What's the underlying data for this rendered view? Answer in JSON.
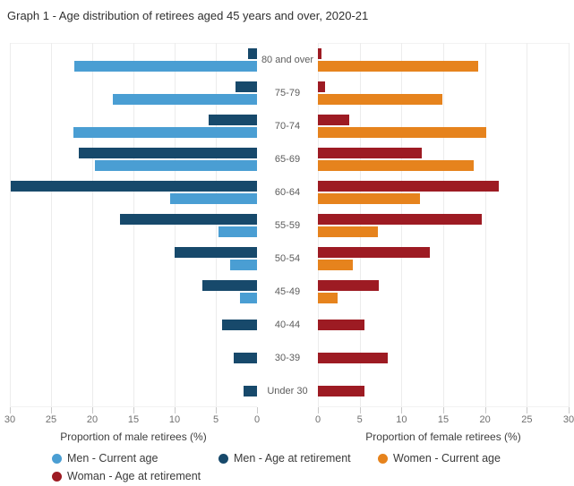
{
  "title": "Graph 1 - Age distribution of retirees aged 45 years and over, 2020-21",
  "chart_data": {
    "type": "bar",
    "subtype": "population-pyramid",
    "age_groups": [
      "80 and over",
      "75-79",
      "70-74",
      "65-69",
      "60-64",
      "55-59",
      "50-54",
      "45-49",
      "40-44",
      "30-39",
      "Under 30"
    ],
    "series": [
      {
        "key": "men_current",
        "name": "Men - Current age",
        "side": "left",
        "color": "#4a9ed3",
        "values": [
          22.2,
          17.5,
          22.3,
          19.7,
          10.5,
          4.7,
          3.3,
          2.1,
          null,
          null,
          null
        ]
      },
      {
        "key": "men_retirement",
        "name": "Men - Age at retirement",
        "side": "left",
        "color": "#17496b",
        "values": [
          1.1,
          2.6,
          5.9,
          21.6,
          29.9,
          16.6,
          10.0,
          6.6,
          4.2,
          2.8,
          1.6
        ]
      },
      {
        "key": "women_current",
        "name": "Women - Current age",
        "side": "right",
        "color": "#e6831d",
        "values": [
          19.2,
          14.9,
          20.1,
          18.6,
          12.2,
          7.2,
          4.2,
          2.4,
          null,
          null,
          null
        ]
      },
      {
        "key": "women_retirement",
        "name": "Woman - Age at retirement",
        "side": "right",
        "color": "#9d1b23",
        "values": [
          0.4,
          0.9,
          3.7,
          12.4,
          21.6,
          19.6,
          13.4,
          7.3,
          5.6,
          8.4,
          5.6
        ]
      }
    ],
    "left_axis": {
      "label": "Proportion of male retirees (%)",
      "ticks": [
        30,
        25,
        20,
        15,
        10,
        5,
        0
      ],
      "max": 30
    },
    "right_axis": {
      "label": "Proportion of female retirees (%)",
      "ticks": [
        0,
        5,
        10,
        15,
        20,
        25,
        30
      ],
      "max": 30
    },
    "grid": true,
    "legend_position": "bottom"
  }
}
